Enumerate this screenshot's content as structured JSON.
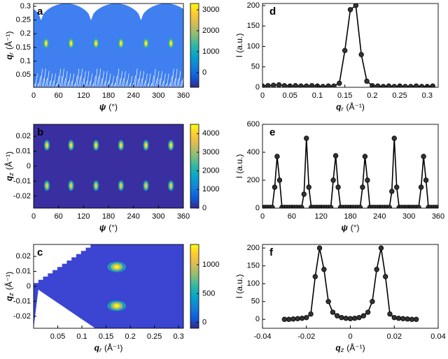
{
  "chart_data": [
    {
      "type": "heatmap",
      "panel": "a",
      "colormap": "parula",
      "background_color": "#3f7ff0",
      "xlabel": {
        "var": "ψ",
        "unit": "(°)"
      },
      "ylabel": {
        "var": "q",
        "sub": "r",
        "unit": "(Å⁻¹)"
      },
      "xlim": [
        0,
        360
      ],
      "xticks": [
        0,
        60,
        120,
        180,
        240,
        300,
        360
      ],
      "ylim": [
        0.005,
        0.31
      ],
      "yticks": [
        0.05,
        0.1,
        0.15,
        0.2,
        0.25,
        0.3
      ],
      "clim": [
        -700,
        3300
      ],
      "cticks": [
        0,
        1000,
        2000,
        3000
      ],
      "spots": {
        "x": [
          30,
          90,
          150,
          210,
          270,
          330
        ],
        "y": [
          0.165,
          0.165,
          0.165,
          0.165,
          0.165,
          0.165
        ],
        "values": [
          3300,
          3300,
          3300,
          3300,
          3300,
          3300
        ]
      }
    },
    {
      "type": "heatmap",
      "panel": "b",
      "colormap": "parula",
      "background_color": "#3a2fa0",
      "xlabel": {
        "var": "ψ",
        "unit": "(°)"
      },
      "ylabel": {
        "var": "q",
        "sub": "z",
        "unit": "(Å⁻¹)"
      },
      "xlim": [
        0,
        360
      ],
      "xticks": [
        0,
        60,
        120,
        180,
        240,
        300,
        360
      ],
      "ylim": [
        -0.028,
        0.028
      ],
      "yticks": [
        -0.02,
        -0.01,
        0,
        0.01,
        0.02
      ],
      "clim": [
        0,
        4500
      ],
      "cticks": [
        0,
        1000,
        2000,
        3000,
        4000
      ],
      "spots": {
        "x": [
          32,
          90,
          150,
          210,
          270,
          330,
          32,
          90,
          150,
          210,
          270,
          330
        ],
        "y": [
          0.014,
          0.014,
          0.014,
          0.014,
          0.014,
          0.014,
          -0.013,
          -0.013,
          -0.013,
          -0.013,
          -0.013,
          -0.013
        ],
        "values": [
          4300,
          4300,
          4300,
          4300,
          4300,
          4300,
          4000,
          4000,
          4000,
          4000,
          4000,
          4000
        ]
      }
    },
    {
      "type": "heatmap",
      "panel": "c",
      "colormap": "parula",
      "background_color": "#3b45d2",
      "xlabel": {
        "var": "q",
        "sub": "r",
        "unit": "(Å⁻¹)"
      },
      "ylabel": {
        "var": "q",
        "sub": "z",
        "unit": "(Å⁻¹)"
      },
      "xlim": [
        0,
        0.31
      ],
      "xticks": [
        0.05,
        0.1,
        0.15,
        0.2,
        0.25,
        0.3
      ],
      "ylim": [
        -0.028,
        0.028
      ],
      "yticks": [
        -0.02,
        -0.01,
        0,
        0.01,
        0.02
      ],
      "clim": [
        -100,
        1350
      ],
      "cticks": [
        0,
        500,
        1000
      ],
      "spots": {
        "x": [
          0.172,
          0.172
        ],
        "y": [
          0.013,
          -0.013
        ],
        "values": [
          1300,
          1300
        ]
      }
    },
    {
      "type": "line",
      "panel": "d",
      "color": "#000000",
      "xlabel": {
        "var": "q",
        "sub": "r",
        "unit": "(Å⁻¹)"
      },
      "ylabel": "I (a.u.)",
      "xlim": [
        0,
        0.32
      ],
      "xticks": [
        0,
        0.05,
        0.1,
        0.15,
        0.2,
        0.25,
        0.3
      ],
      "ylim": [
        0,
        205
      ],
      "yticks": [
        0,
        50,
        100,
        150,
        200
      ],
      "x": [
        0,
        0.01,
        0.02,
        0.03,
        0.04,
        0.05,
        0.06,
        0.07,
        0.08,
        0.09,
        0.1,
        0.11,
        0.12,
        0.13,
        0.14,
        0.15,
        0.16,
        0.17,
        0.18,
        0.19,
        0.2,
        0.21,
        0.22,
        0.23,
        0.24,
        0.25,
        0.26,
        0.27,
        0.28,
        0.29,
        0.3,
        0.31
      ],
      "values": [
        3,
        4,
        5,
        6,
        4,
        3,
        4,
        3,
        3,
        4,
        3,
        2,
        3,
        3,
        10,
        90,
        190,
        200,
        80,
        15,
        4,
        3,
        2,
        3,
        2,
        3,
        2,
        2,
        3,
        2,
        2,
        3
      ]
    },
    {
      "type": "line",
      "panel": "e",
      "color": "#000000",
      "xlabel": {
        "var": "ψ",
        "unit": "(°)"
      },
      "ylabel": "I (a.u.)",
      "xlim": [
        0,
        360
      ],
      "xticks": [
        0,
        60,
        120,
        180,
        240,
        300,
        360
      ],
      "ylim": [
        0,
        600
      ],
      "yticks": [
        0,
        200,
        400,
        600
      ],
      "x": [
        0,
        5,
        10,
        15,
        20,
        25,
        30,
        35,
        40,
        45,
        50,
        55,
        60,
        65,
        70,
        75,
        80,
        85,
        90,
        95,
        100,
        105,
        110,
        115,
        120,
        125,
        130,
        135,
        140,
        145,
        150,
        155,
        160,
        165,
        170,
        175,
        180,
        185,
        190,
        195,
        200,
        205,
        210,
        215,
        220,
        225,
        230,
        235,
        240,
        245,
        250,
        255,
        260,
        265,
        270,
        275,
        280,
        285,
        290,
        295,
        300,
        305,
        310,
        315,
        320,
        325,
        330,
        335,
        340,
        345,
        350,
        355,
        360
      ],
      "values": [
        5,
        5,
        5,
        5,
        5,
        150,
        370,
        200,
        5,
        5,
        5,
        5,
        5,
        5,
        5,
        5,
        5,
        100,
        500,
        150,
        5,
        5,
        5,
        5,
        5,
        5,
        5,
        5,
        5,
        200,
        375,
        150,
        5,
        5,
        5,
        5,
        5,
        5,
        5,
        5,
        5,
        150,
        370,
        200,
        5,
        5,
        5,
        5,
        5,
        5,
        5,
        5,
        5,
        120,
        500,
        150,
        5,
        5,
        5,
        5,
        5,
        5,
        5,
        5,
        5,
        150,
        370,
        200,
        5,
        5,
        5,
        5,
        5
      ]
    },
    {
      "type": "line",
      "panel": "f",
      "color": "#000000",
      "xlabel": {
        "var": "q",
        "sub": "z",
        "unit": "(Å⁻¹)"
      },
      "ylabel": "I (a.u.)",
      "xlim": [
        -0.04,
        0.04
      ],
      "xticks": [
        -0.04,
        -0.02,
        0,
        0.02,
        0.04
      ],
      "ylim": [
        -25,
        210
      ],
      "yticks": [
        0,
        50,
        100,
        150,
        200
      ],
      "x": [
        -0.03,
        -0.028,
        -0.026,
        -0.024,
        -0.022,
        -0.02,
        -0.018,
        -0.016,
        -0.014,
        -0.012,
        -0.01,
        -0.008,
        -0.006,
        -0.004,
        -0.002,
        0,
        0.002,
        0.004,
        0.006,
        0.008,
        0.01,
        0.012,
        0.014,
        0.016,
        0.018,
        0.02,
        0.022,
        0.024,
        0.026,
        0.028,
        0.03
      ],
      "values": [
        0,
        0,
        1,
        2,
        3,
        5,
        15,
        120,
        200,
        140,
        50,
        20,
        10,
        5,
        3,
        2,
        3,
        5,
        10,
        20,
        50,
        140,
        200,
        120,
        15,
        5,
        3,
        2,
        1,
        0,
        0
      ]
    }
  ]
}
